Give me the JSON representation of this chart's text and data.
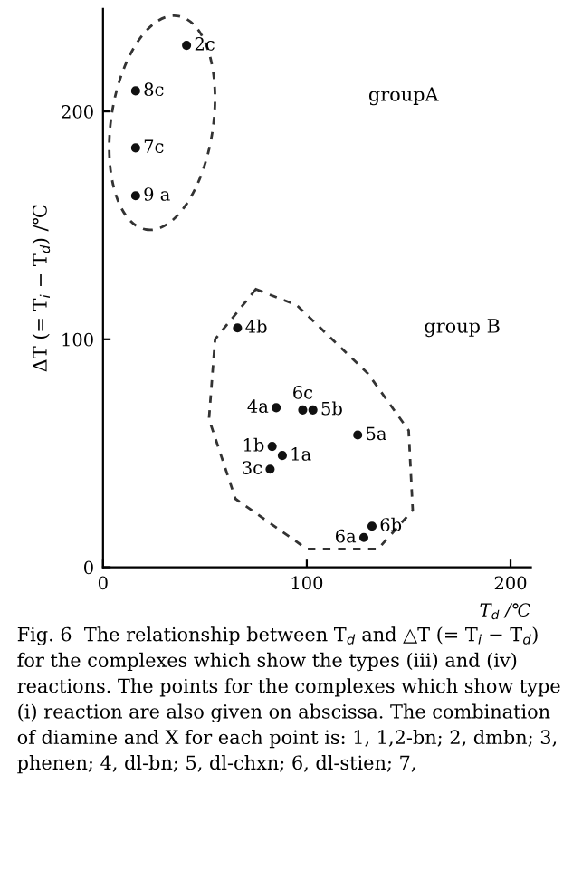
{
  "chart_data": {
    "type": "scatter",
    "xlabel": "T$_{d}$ /℃",
    "ylabel": "ΔT (= T$_{i}$ − T$_{d}$) /℃",
    "xlim": [
      0,
      210
    ],
    "ylim": [
      0,
      245
    ],
    "xticks": [
      0,
      100,
      200
    ],
    "yticks": [
      0,
      100,
      200
    ],
    "series": [
      {
        "color": "#111111",
        "x": [
          41,
          16,
          16,
          16,
          66,
          85,
          98,
          103,
          125,
          83,
          88,
          82,
          128,
          132
        ],
        "values": [
          229,
          209,
          184,
          163,
          105,
          70,
          69,
          69,
          58,
          53,
          49,
          43,
          13,
          18
        ]
      }
    ],
    "marker": "circle",
    "grid": false,
    "legend": false,
    "annotations": [
      {
        "text": "2c",
        "x": 41,
        "y": 229
      },
      {
        "text": "8c",
        "x": 16,
        "y": 209
      },
      {
        "text": "7c",
        "x": 16,
        "y": 184
      },
      {
        "text": "9 a",
        "x": 16,
        "y": 163
      },
      {
        "text": "4b",
        "x": 66,
        "y": 105
      },
      {
        "text": "4a",
        "x": 85,
        "y": 70
      },
      {
        "text": "6c",
        "x": 98,
        "y": 69
      },
      {
        "text": "5b",
        "x": 103,
        "y": 69
      },
      {
        "text": "5a",
        "x": 125,
        "y": 58
      },
      {
        "text": "1b",
        "x": 83,
        "y": 53
      },
      {
        "text": "1a",
        "x": 88,
        "y": 49
      },
      {
        "text": "3c",
        "x": 82,
        "y": 43
      },
      {
        "text": "6a",
        "x": 128,
        "y": 13
      },
      {
        "text": "6b",
        "x": 132,
        "y": 18
      },
      "groupA",
      "group B",
      "Fig. 6  The relationship between T$_{d}$ and △T (= T$_{i}$ − T$_{d}$) for the complexes which show the types (iii) and (iv) reactions. The points for the complexes which show type (i) reaction are also given on abscissa. The combination of diamine and X for each point is: 1, 1,2-bn; 2, dmbn; 3, phenen; 4, dl-bn; 5, dl-chxn; 6, dl-stien; 7,"
    ]
  }
}
